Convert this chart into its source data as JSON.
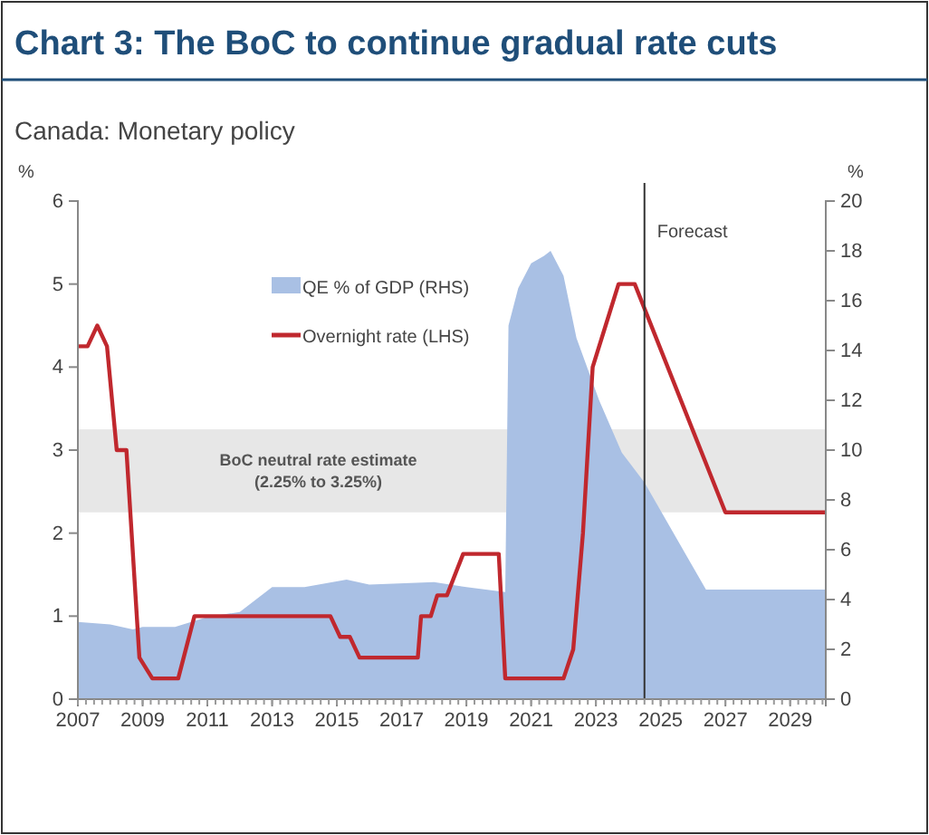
{
  "chart_data": {
    "type": "line",
    "title": "Chart 3: The BoC to continue gradual rate cuts",
    "subtitle": "Canada: Monetary policy",
    "ylabel": "%",
    "y2label": "%",
    "xlim": [
      2007,
      2030.1
    ],
    "xticks": [
      2007,
      2009,
      2011,
      2013,
      2015,
      2017,
      2019,
      2021,
      2023,
      2025,
      2027,
      2029
    ],
    "ylim": [
      0,
      6
    ],
    "yticks": [
      0,
      1,
      2,
      3,
      4,
      5,
      6
    ],
    "y2lim": [
      0,
      20
    ],
    "y2ticks": [
      0,
      2,
      4,
      6,
      8,
      10,
      12,
      14,
      16,
      18,
      20
    ],
    "legend": "top left",
    "grid": false,
    "bands": [
      {
        "axis": "y",
        "from": 2.25,
        "to": 3.25,
        "label": "BoC neutral rate estimate\n(2.25% to 3.25%)",
        "color": "#e3e3e3"
      }
    ],
    "ref_lines": [
      {
        "axis": "x",
        "value": 2024.5,
        "label": "Forecast",
        "color": "#333333"
      }
    ],
    "series": [
      {
        "name": "QE % of GDP (RHS)",
        "type": "area",
        "axis": "y2",
        "color": "#a9c0e4",
        "x": [
          2007,
          2008,
          2008.7,
          2009,
          2010,
          2011,
          2012,
          2013,
          2014,
          2015.3,
          2016,
          2018,
          2019,
          2020.2,
          2020.3,
          2020.6,
          2021.0,
          2021.4,
          2021.6,
          2022.0,
          2022.4,
          2023.1,
          2023.8,
          2024.5,
          2026.4,
          2030.1
        ],
        "values": [
          3.1,
          3.0,
          2.8,
          2.9,
          2.9,
          3.3,
          3.5,
          4.5,
          4.5,
          4.8,
          4.6,
          4.7,
          4.5,
          4.3,
          15,
          16.5,
          17.5,
          17.8,
          18,
          17,
          14.5,
          12,
          9.9,
          8.7,
          4.4,
          4.4
        ]
      },
      {
        "name": "Overnight rate (LHS)",
        "type": "line",
        "color": "#c0282e",
        "x": [
          2007,
          2007.3,
          2007.6,
          2007.9,
          2008.2,
          2008.5,
          2008.9,
          2009.3,
          2010.1,
          2010.6,
          2014.8,
          2015.1,
          2015.4,
          2015.7,
          2017.5,
          2017.6,
          2017.9,
          2018.1,
          2018.4,
          2018.9,
          2020.0,
          2020.2,
          2022.0,
          2022.3,
          2022.6,
          2022.9,
          2023.3,
          2023.7,
          2024.2,
          2027.0,
          2030.1
        ],
        "values": [
          4.25,
          4.25,
          4.5,
          4.25,
          3.0,
          3.0,
          0.5,
          0.25,
          0.25,
          1.0,
          1.0,
          0.75,
          0.75,
          0.5,
          0.5,
          1.0,
          1.0,
          1.25,
          1.25,
          1.75,
          1.75,
          0.25,
          0.25,
          0.6,
          2.0,
          4.0,
          4.5,
          5.0,
          5.0,
          2.25,
          2.25
        ]
      }
    ]
  }
}
